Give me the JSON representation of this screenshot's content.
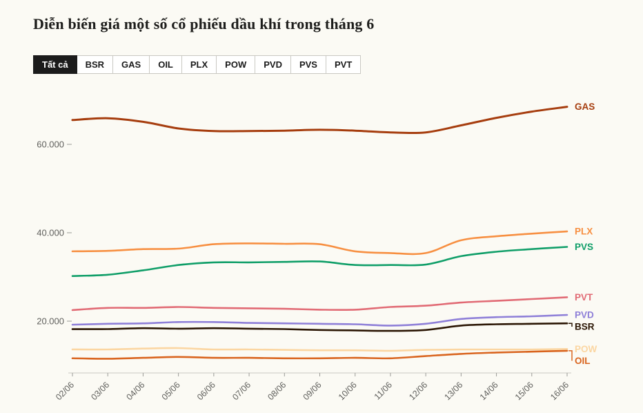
{
  "page": {
    "title": "Diễn biến giá một số cổ phiếu dầu khí trong tháng 6"
  },
  "tabs": [
    {
      "label": "Tất cả",
      "active": true
    },
    {
      "label": "BSR",
      "active": false
    },
    {
      "label": "GAS",
      "active": false
    },
    {
      "label": "OIL",
      "active": false
    },
    {
      "label": "PLX",
      "active": false
    },
    {
      "label": "POW",
      "active": false
    },
    {
      "label": "PVD",
      "active": false
    },
    {
      "label": "PVS",
      "active": false
    },
    {
      "label": "PVT",
      "active": false
    }
  ],
  "chart_data": {
    "type": "line",
    "x": [
      "02/06",
      "03/06",
      "04/06",
      "05/06",
      "06/06",
      "07/06",
      "08/06",
      "09/06",
      "10/06",
      "11/06",
      "12/06",
      "13/06",
      "14/06",
      "15/06",
      "16/06"
    ],
    "series": [
      {
        "name": "GAS",
        "color": "#a63d0e",
        "values": [
          65500,
          65900,
          65100,
          63600,
          63000,
          63000,
          63100,
          63300,
          63100,
          62700,
          62700,
          64300,
          66000,
          67400,
          68500
        ]
      },
      {
        "name": "PLX",
        "color": "#f78f41",
        "values": [
          35800,
          35900,
          36300,
          36400,
          37400,
          37600,
          37500,
          37400,
          35800,
          35400,
          35400,
          38300,
          39200,
          39800,
          40300
        ]
      },
      {
        "name": "PVS",
        "color": "#0f9e68",
        "values": [
          30200,
          30500,
          31500,
          32700,
          33300,
          33300,
          33400,
          33500,
          32700,
          32700,
          32800,
          34700,
          35700,
          36300,
          36800
        ]
      },
      {
        "name": "PVT",
        "color": "#e16a74",
        "values": [
          22500,
          23000,
          23000,
          23200,
          23000,
          22900,
          22800,
          22600,
          22600,
          23200,
          23500,
          24200,
          24600,
          25000,
          25400
        ]
      },
      {
        "name": "PVD",
        "color": "#8e7fd8",
        "values": [
          19200,
          19400,
          19500,
          19800,
          19800,
          19600,
          19500,
          19400,
          19300,
          19000,
          19400,
          20500,
          20900,
          21100,
          21400
        ]
      },
      {
        "name": "BSR",
        "color": "#2a1503",
        "values": [
          18200,
          18200,
          18400,
          18300,
          18400,
          18300,
          18200,
          18000,
          17900,
          17800,
          18000,
          19000,
          19300,
          19400,
          19500
        ]
      },
      {
        "name": "POW",
        "color": "#fbd6a2",
        "values": [
          13600,
          13600,
          13800,
          13900,
          13600,
          13600,
          13500,
          13400,
          13400,
          13300,
          13500,
          13600,
          13600,
          13600,
          13700
        ]
      },
      {
        "name": "OIL",
        "color": "#d9641e",
        "values": [
          11600,
          11500,
          11700,
          11900,
          11700,
          11700,
          11600,
          11600,
          11700,
          11600,
          12100,
          12600,
          12900,
          13100,
          13300
        ]
      }
    ],
    "yticks": [
      {
        "value": 20000,
        "label": "20.000"
      },
      {
        "value": 40000,
        "label": "40.000"
      },
      {
        "value": 60000,
        "label": "60.000"
      }
    ],
    "ylim": [
      10000,
      72000
    ],
    "grid": false,
    "legend_position": "right-end-labels",
    "title": "",
    "xlabel": "",
    "ylabel": ""
  },
  "colors": {
    "background": "#fbfaf4",
    "axis_line": "#c9c8c2",
    "tick": "#9a9a96",
    "tick_text": "#5f5f5c",
    "active_tab_bg": "#1b1b1b"
  }
}
